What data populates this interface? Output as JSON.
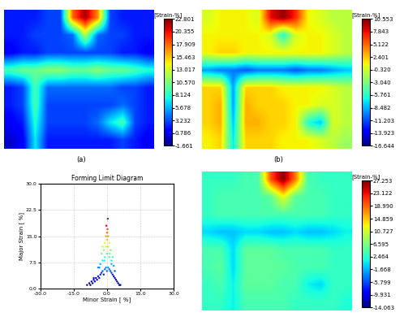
{
  "chart_data": [
    {
      "type": "heatmap",
      "panel_label": "(a)",
      "colorbar_title": "[Strain-%]",
      "cells": [
        [
          2,
          2,
          2,
          3,
          3,
          18,
          22,
          17,
          3,
          2,
          2,
          2
        ],
        [
          2,
          2,
          3,
          3,
          3,
          4,
          12,
          4,
          3,
          3,
          2,
          2
        ],
        [
          1,
          2,
          2,
          3,
          3,
          3,
          3,
          3,
          3,
          2,
          2,
          1
        ],
        [
          9,
          10,
          10,
          11,
          11,
          10,
          10,
          11,
          10,
          10,
          9,
          8
        ],
        [
          2,
          3,
          9,
          4,
          4,
          4,
          4,
          4,
          4,
          3,
          3,
          2
        ],
        [
          2,
          3,
          9,
          3,
          3,
          3,
          3,
          3,
          3,
          4,
          3,
          2
        ],
        [
          1,
          2,
          8,
          3,
          3,
          3,
          3,
          4,
          7,
          9,
          3,
          2
        ],
        [
          0,
          1,
          7,
          2,
          2,
          2,
          2,
          2,
          2,
          3,
          2,
          1
        ]
      ],
      "colorbar_range": [
        -1.661,
        22.801
      ],
      "colorbar_ticks": [
        22.801,
        20.355,
        17.909,
        15.463,
        13.017,
        {
          "value": 10.57,
          "label": "10.570"
        },
        8.124,
        5.678,
        3.232,
        0.786,
        -1.661
      ]
    },
    {
      "type": "heatmap",
      "panel_label": "(b)",
      "colorbar_title": "[Strain-%]",
      "cells": [
        [
          0,
          1,
          1,
          1,
          0,
          8,
          10,
          7,
          1,
          0,
          -1,
          -1
        ],
        [
          1,
          1,
          1,
          1,
          1,
          0,
          -6,
          0,
          1,
          1,
          0,
          -1
        ],
        [
          1,
          2,
          2,
          1,
          1,
          1,
          1,
          1,
          1,
          1,
          0,
          -1
        ],
        [
          -9,
          -10,
          -10,
          -11,
          -10,
          -10,
          -10,
          -11,
          -10,
          -10,
          -9,
          -8
        ],
        [
          2,
          2,
          -9,
          2,
          2,
          2,
          1,
          1,
          1,
          1,
          0,
          -1
        ],
        [
          2,
          3,
          -9,
          3,
          2,
          2,
          2,
          1,
          1,
          0,
          0,
          -1
        ],
        [
          2,
          3,
          -8,
          3,
          3,
          2,
          2,
          1,
          -6,
          -8,
          0,
          -1
        ],
        [
          1,
          2,
          -7,
          2,
          2,
          2,
          1,
          1,
          1,
          0,
          -1,
          -2
        ]
      ],
      "colorbar_range": [
        -16.644,
        10.553
      ],
      "colorbar_ticks": [
        10.553,
        7.843,
        5.122,
        2.401,
        {
          "value": -0.32,
          "label": "-0.320"
        },
        {
          "value": -3.04,
          "label": "-3.040"
        },
        -5.761,
        -8.482,
        -11.203,
        -13.923,
        -16.644
      ]
    },
    {
      "type": "scatter",
      "title": "Forming Limit Diagram",
      "x_label": "Minor Strain [ %]",
      "y_label": "Major Strain [ %]",
      "x": [
        -9,
        -8,
        -7.5,
        -7,
        -6.5,
        -6,
        -5.5,
        -5,
        -4.5,
        -4,
        -3.5,
        -3,
        -2.5,
        -2,
        -1.5,
        -1,
        -0.5,
        0,
        0.5,
        1,
        1.5,
        2,
        2.5,
        3,
        3.5,
        4,
        4.5,
        5,
        5.5,
        6,
        -4,
        -3,
        -2,
        -1,
        0,
        1,
        2,
        3,
        -2.5,
        -1.5,
        -0.5,
        0.5,
        1.5,
        2.5,
        -1,
        0,
        1,
        -0.5,
        0.5,
        0,
        -0.3,
        0.3,
        -6,
        -3.5,
        -1.2,
        1.2,
        3.5,
        -2,
        2,
        0.2
      ],
      "y": [
        1,
        1.5,
        1,
        2,
        1.5,
        2.5,
        2,
        3,
        2.5,
        3.5,
        3,
        4,
        4.5,
        5,
        4,
        5.5,
        6,
        5,
        6,
        5.5,
        5,
        4.5,
        4,
        3.5,
        3,
        2.5,
        2,
        1.5,
        1,
        1,
        6,
        7,
        8,
        9,
        10,
        9,
        8,
        6.5,
        10,
        11,
        12,
        12,
        11,
        9,
        13,
        14,
        13,
        15,
        15,
        16,
        18,
        20,
        3,
        6,
        8,
        10,
        5,
        12,
        7,
        17
      ],
      "xlim": [
        -30,
        30
      ],
      "xticks": [
        {
          "value": -30,
          "label": "-30.0"
        },
        {
          "value": -15,
          "label": "-15.0"
        },
        {
          "value": 0,
          "label": "0.0"
        },
        {
          "value": 15,
          "label": "15.0"
        },
        {
          "value": 30,
          "label": "30.0"
        }
      ],
      "ylim": [
        0,
        30
      ],
      "yticks": [
        {
          "value": 0,
          "label": "0.0"
        },
        7.5,
        {
          "value": 15,
          "label": "15.0"
        },
        22.5,
        {
          "value": 30,
          "label": "30.0"
        }
      ],
      "grid": true
    },
    {
      "type": "heatmap",
      "colorbar_title": "[Strain-%]",
      "cells": [
        [
          3,
          3,
          3,
          4,
          4,
          20,
          27,
          18,
          4,
          3,
          3,
          3
        ],
        [
          3,
          4,
          4,
          4,
          4,
          5,
          12,
          5,
          4,
          4,
          3,
          3
        ],
        [
          3,
          4,
          4,
          4,
          4,
          4,
          4,
          4,
          4,
          4,
          3,
          3
        ],
        [
          0,
          -1,
          -1,
          0,
          0,
          -1,
          -1,
          0,
          -1,
          -1,
          0,
          1
        ],
        [
          4,
          4,
          0,
          5,
          5,
          5,
          4,
          4,
          4,
          4,
          3,
          3
        ],
        [
          4,
          5,
          0,
          5,
          5,
          5,
          5,
          4,
          4,
          4,
          3,
          3
        ],
        [
          3,
          4,
          1,
          5,
          5,
          5,
          4,
          4,
          1,
          0,
          3,
          3
        ],
        [
          3,
          3,
          1,
          4,
          4,
          4,
          4,
          3,
          3,
          3,
          3,
          2
        ]
      ],
      "colorbar_range": [
        -14.063,
        27.253
      ],
      "colorbar_ticks": [
        27.253,
        23.122,
        {
          "value": 18.99,
          "label": "18.990"
        },
        14.859,
        10.727,
        6.595,
        2.464,
        -1.668,
        -5.799,
        -9.931,
        -14.063
      ]
    }
  ]
}
